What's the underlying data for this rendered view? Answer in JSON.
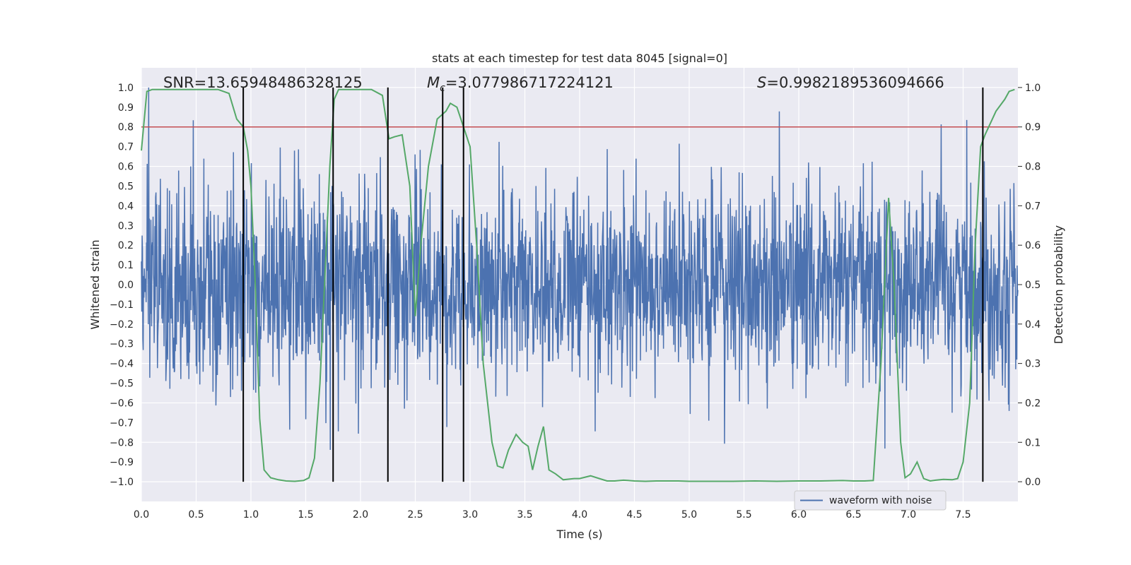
{
  "chart_data": {
    "type": "line",
    "title": "stats at each timestep for test data 8045 [signal=0]",
    "xlabel": "Time (s)",
    "ylabel": "Whitened strain",
    "y2label": "Detection probability",
    "xlim": [
      0,
      8
    ],
    "ylim": [
      -1.1,
      1.1
    ],
    "y2lim": [
      -0.05,
      1.05
    ],
    "x_ticks": [
      "0.0",
      "0.5",
      "1.0",
      "1.5",
      "2.0",
      "2.5",
      "3.0",
      "3.5",
      "4.0",
      "4.5",
      "5.0",
      "5.5",
      "6.0",
      "6.5",
      "7.0",
      "7.5"
    ],
    "y_ticks": [
      "1.0",
      "0.9",
      "0.8",
      "0.7",
      "0.6",
      "0.5",
      "0.4",
      "0.3",
      "0.2",
      "0.1",
      "0.0",
      "-0.1",
      "-0.2",
      "-0.3",
      "-0.4",
      "-0.5",
      "-0.6",
      "-0.7",
      "-0.8",
      "-0.9",
      "-1.0"
    ],
    "y2_ticks": [
      "1.0",
      "0.9",
      "0.8",
      "0.7",
      "0.6",
      "0.5",
      "0.4",
      "0.3",
      "0.2",
      "0.1",
      "0.0"
    ],
    "annotations": {
      "snr": "SNR=13.65948486328125",
      "mc_symbol": "M",
      "mc_sub": "c",
      "mc_value": "=3.077986717224121",
      "s_symbol": "S",
      "s_value": "=0.9982189536094666"
    },
    "legend": {
      "label": "waveform with noise",
      "location": "lower-right"
    },
    "threshold": {
      "value": 0.9,
      "axis": "y2",
      "color": "#c44e52"
    },
    "vertical_lines": {
      "x": [
        0.93,
        1.75,
        2.25,
        2.75,
        2.94,
        7.68
      ],
      "y_from": -1.0,
      "y_to": 1.0,
      "color": "#000000"
    },
    "waveform": {
      "name": "waveform with noise",
      "color": "#4c72b0",
      "x_range": [
        0,
        8
      ],
      "typical_amplitude": 0.4,
      "peak_amplitude": 1.0
    },
    "detection_probability": {
      "name": "Detection probability",
      "color": "#55a868",
      "x": [
        0.0,
        0.05,
        0.1,
        0.2,
        0.3,
        0.5,
        0.7,
        0.8,
        0.87,
        0.93,
        0.97,
        1.0,
        1.04,
        1.08,
        1.12,
        1.18,
        1.25,
        1.32,
        1.4,
        1.48,
        1.53,
        1.58,
        1.63,
        1.68,
        1.72,
        1.76,
        1.8,
        1.85,
        1.9,
        2.0,
        2.1,
        2.2,
        2.26,
        2.31,
        2.38,
        2.45,
        2.5,
        2.55,
        2.62,
        2.7,
        2.78,
        2.82,
        2.88,
        2.94,
        3.0,
        3.06,
        3.12,
        3.2,
        3.25,
        3.3,
        3.35,
        3.42,
        3.48,
        3.53,
        3.57,
        3.62,
        3.67,
        3.72,
        3.78,
        3.85,
        3.95,
        4.0,
        4.1,
        4.18,
        4.25,
        4.32,
        4.4,
        4.5,
        4.6,
        4.7,
        4.9,
        5.0,
        5.2,
        5.4,
        5.6,
        5.8,
        6.0,
        6.2,
        6.4,
        6.5,
        6.6,
        6.68,
        6.75,
        6.82,
        6.87,
        6.93,
        6.97,
        7.02,
        7.08,
        7.14,
        7.2,
        7.25,
        7.32,
        7.4,
        7.45,
        7.5,
        7.56,
        7.61,
        7.66,
        7.7,
        7.75,
        7.8,
        7.88,
        7.92,
        7.97
      ],
      "y": [
        0.84,
        0.99,
        0.995,
        0.995,
        0.995,
        0.995,
        0.995,
        0.985,
        0.92,
        0.9,
        0.84,
        0.75,
        0.5,
        0.16,
        0.03,
        0.01,
        0.005,
        0.002,
        0.001,
        0.003,
        0.01,
        0.06,
        0.25,
        0.55,
        0.8,
        0.97,
        0.995,
        0.995,
        0.995,
        0.995,
        0.995,
        0.98,
        0.87,
        0.875,
        0.88,
        0.75,
        0.42,
        0.6,
        0.8,
        0.92,
        0.94,
        0.96,
        0.95,
        0.9,
        0.85,
        0.6,
        0.3,
        0.1,
        0.04,
        0.035,
        0.08,
        0.12,
        0.1,
        0.09,
        0.03,
        0.09,
        0.14,
        0.03,
        0.02,
        0.005,
        0.008,
        0.008,
        0.015,
        0.008,
        0.002,
        0.002,
        0.004,
        0.002,
        0.001,
        0.002,
        0.002,
        0.001,
        0.001,
        0.001,
        0.002,
        0.001,
        0.002,
        0.002,
        0.003,
        0.002,
        0.002,
        0.003,
        0.3,
        0.72,
        0.5,
        0.1,
        0.01,
        0.02,
        0.05,
        0.008,
        0.002,
        0.004,
        0.006,
        0.005,
        0.008,
        0.05,
        0.2,
        0.6,
        0.85,
        0.88,
        0.91,
        0.94,
        0.97,
        0.99,
        0.995
      ]
    }
  }
}
